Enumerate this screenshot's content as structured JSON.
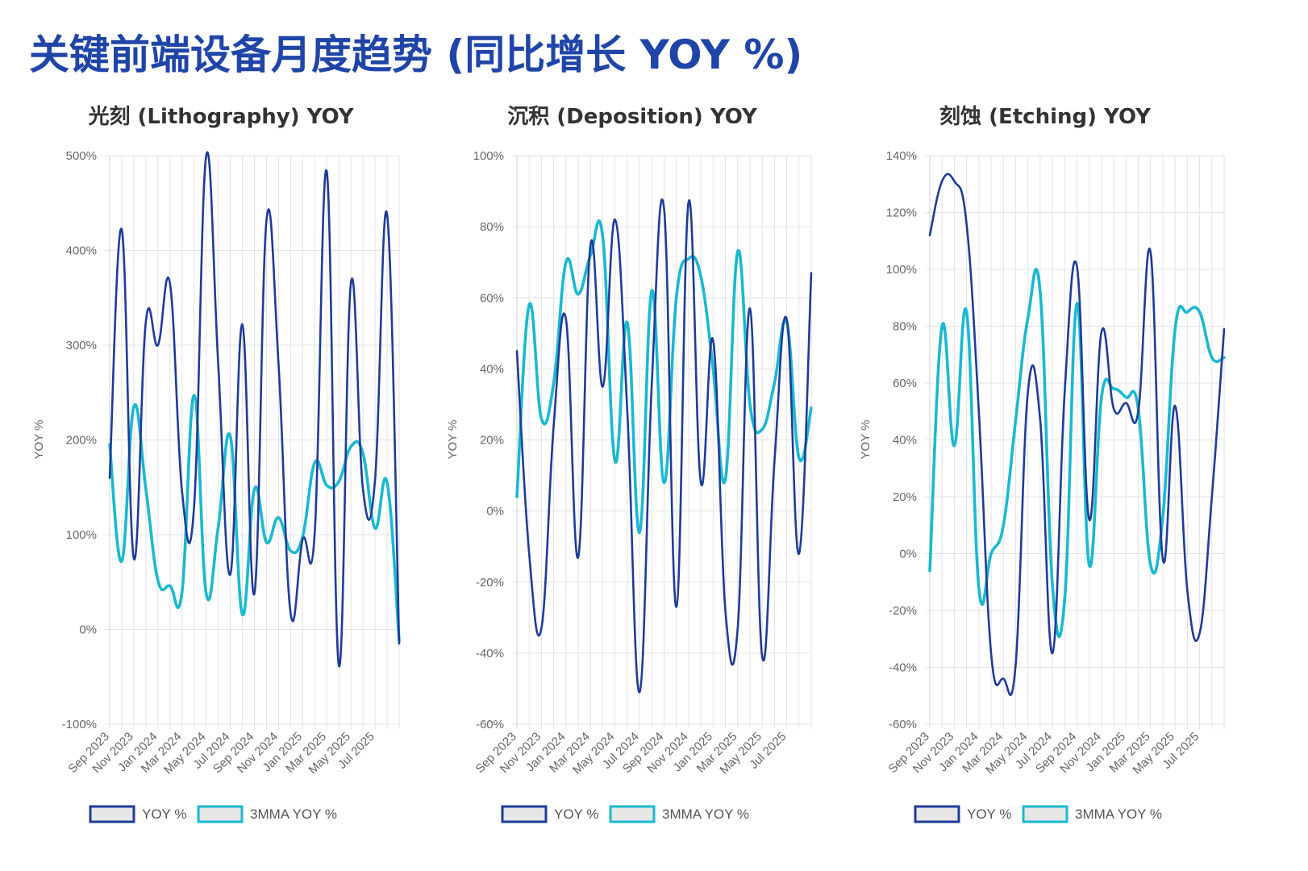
{
  "page_title": "关键前端设备月度趋势 (同比增长 YOY %)",
  "colors": {
    "yoy": "#1f3b99",
    "mma": "#1ab9cf",
    "grid": "#e3e3e3",
    "title": "#1f45a8"
  },
  "chart_data": [
    {
      "type": "line",
      "title": "光刻 (Lithography) YOY",
      "ylabel": "YOY %",
      "ylim": [
        -100,
        500
      ],
      "yticks": [
        -100,
        0,
        100,
        200,
        300,
        400,
        500
      ],
      "ytick_labels": [
        "-100%",
        "0%",
        "100%",
        "200%",
        "300%",
        "400%",
        "500%"
      ],
      "xtick_labels": [
        "Sep 2023",
        "Nov 2023",
        "Jan 2024",
        "Mar 2024",
        "May 2024",
        "Jul 2024",
        "Sep 2024",
        "Nov 2024",
        "Jan 2025",
        "Mar 2025",
        "May 2025",
        "Jul 2025"
      ],
      "x": [
        "2023-09",
        "2023-10",
        "2023-11",
        "2023-12",
        "2024-01",
        "2024-02",
        "2024-03",
        "2024-04",
        "2024-05",
        "2024-06",
        "2024-07",
        "2024-08",
        "2024-09",
        "2024-10",
        "2024-11",
        "2024-12",
        "2025-01",
        "2025-02",
        "2025-03",
        "2025-04",
        "2025-05",
        "2025-06",
        "2025-07",
        "2025-08",
        "2025-09"
      ],
      "series": [
        {
          "name": "YOY %",
          "values": [
            160,
            422,
            75,
            325,
            300,
            365,
            145,
            130,
            500,
            280,
            58,
            322,
            38,
            432,
            280,
            17,
            95,
            102,
            483,
            -38,
            366,
            148,
            158,
            438,
            -15
          ]
        },
        {
          "name": "3MMA YOY %",
          "values": [
            195,
            72,
            235,
            148,
            52,
            46,
            40,
            247,
            38,
            108,
            204,
            16,
            148,
            92,
            118,
            83,
            98,
            176,
            152,
            156,
            193,
            186,
            107,
            155,
            -12
          ]
        }
      ],
      "legend": "bottom-left",
      "grid": true
    },
    {
      "type": "line",
      "title": "沉积 (Deposition) YOY",
      "ylabel": "YOY %",
      "ylim": [
        -60,
        100
      ],
      "yticks": [
        -60,
        -40,
        -20,
        0,
        20,
        40,
        60,
        80,
        100
      ],
      "ytick_labels": [
        "-60%",
        "-40%",
        "-20%",
        "0%",
        "20%",
        "40%",
        "60%",
        "80%",
        "100%"
      ],
      "xtick_labels": [
        "Sep 2023",
        "Nov 2023",
        "Jan 2024",
        "Mar 2024",
        "May 2024",
        "Jul 2024",
        "Sep 2024",
        "Nov 2024",
        "Jan 2025",
        "Mar 2025",
        "May 2025",
        "Jul 2025"
      ],
      "x": [
        "2023-09",
        "2023-10",
        "2023-11",
        "2023-12",
        "2024-01",
        "2024-02",
        "2024-03",
        "2024-04",
        "2024-05",
        "2024-06",
        "2024-07",
        "2024-08",
        "2024-09",
        "2024-10",
        "2024-11",
        "2024-12",
        "2025-01",
        "2025-02",
        "2025-03",
        "2025-04",
        "2025-05",
        "2025-06",
        "2025-07",
        "2025-08",
        "2025-09"
      ],
      "series": [
        {
          "name": "YOY %",
          "values": [
            45,
            -12,
            -33,
            24,
            54,
            -13,
            75,
            35,
            82,
            28,
            -51,
            36,
            85,
            -27,
            87,
            8,
            48,
            -28,
            -33,
            57,
            -41,
            14,
            54,
            -12,
            67
          ]
        },
        {
          "name": "3MMA YOY %",
          "values": [
            4,
            58,
            26,
            36,
            70,
            61,
            72,
            77,
            14,
            53,
            -6,
            62,
            8,
            60,
            71,
            66,
            40,
            9,
            73,
            30,
            23,
            36,
            53,
            15,
            29
          ]
        }
      ],
      "legend": "bottom-left",
      "grid": true
    },
    {
      "type": "line",
      "title": "刻蚀 (Etching) YOY",
      "ylabel": "YOY %",
      "ylim": [
        -60,
        140
      ],
      "yticks": [
        -60,
        -40,
        -20,
        0,
        20,
        40,
        60,
        80,
        100,
        120,
        140
      ],
      "ytick_labels": [
        "-60%",
        "-40%",
        "-20%",
        "0%",
        "20%",
        "40%",
        "60%",
        "80%",
        "100%",
        "120%",
        "140%"
      ],
      "xtick_labels": [
        "Sep 2023",
        "Nov 2023",
        "Jan 2024",
        "Mar 2024",
        "May 2024",
        "Jul 2024",
        "Sep 2024",
        "Nov 2024",
        "Jan 2025",
        "Mar 2025",
        "May 2025",
        "Jul 2025"
      ],
      "x": [
        "2023-09",
        "2023-10",
        "2023-11",
        "2023-12",
        "2024-01",
        "2024-02",
        "2024-03",
        "2024-04",
        "2024-05",
        "2024-06",
        "2024-07",
        "2024-08",
        "2024-09",
        "2024-10",
        "2024-11",
        "2024-12",
        "2025-01",
        "2025-02",
        "2025-03",
        "2025-04",
        "2025-05",
        "2025-06",
        "2025-07",
        "2025-08",
        "2025-09"
      ],
      "series": [
        {
          "name": "YOY %",
          "values": [
            112,
            131,
            131,
            116,
            50,
            -35,
            -44,
            -39,
            57,
            47,
            -35,
            57,
            101,
            12,
            78,
            51,
            53,
            50,
            106,
            -2,
            52,
            -13,
            -28,
            20,
            79
          ]
        },
        {
          "name": "3MMA YOY %",
          "values": [
            -6,
            80,
            38,
            85,
            -12,
            0,
            10,
            47,
            83,
            92,
            -11,
            -16,
            88,
            -4,
            55,
            58,
            55,
            51,
            -4,
            13,
            79,
            85,
            85,
            69,
            69
          ]
        }
      ],
      "legend": "bottom-left",
      "grid": true
    }
  ]
}
